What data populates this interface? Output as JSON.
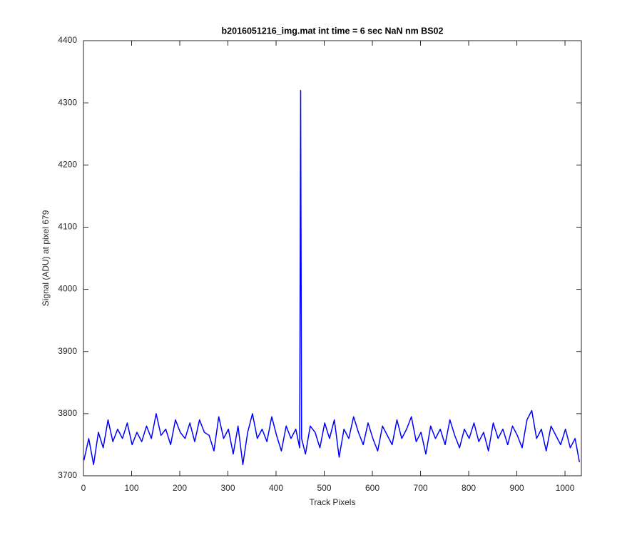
{
  "chart_data": {
    "type": "line",
    "title": "b2016051216_img.mat int time = 6 sec  NaN nm BS02",
    "xlabel": "Track Pixels",
    "ylabel": "Signal (ADU) at pixel 679",
    "xlim": [
      0,
      1034
    ],
    "ylim": [
      3700,
      4400
    ],
    "xticks": [
      0,
      100,
      200,
      300,
      400,
      500,
      600,
      700,
      800,
      900,
      1000
    ],
    "yticks": [
      3700,
      3800,
      3900,
      4000,
      4100,
      4200,
      4300,
      4400
    ],
    "grid": false,
    "series": [
      {
        "color": "#0000ff",
        "x": [
          1,
          11,
          21,
          31,
          41,
          51,
          61,
          71,
          81,
          91,
          101,
          111,
          121,
          131,
          141,
          151,
          161,
          171,
          181,
          191,
          201,
          211,
          221,
          231,
          241,
          251,
          261,
          271,
          281,
          291,
          301,
          311,
          321,
          331,
          341,
          351,
          361,
          371,
          381,
          391,
          401,
          411,
          421,
          431,
          441,
          449,
          451,
          453,
          461,
          471,
          481,
          491,
          501,
          511,
          521,
          531,
          541,
          551,
          561,
          571,
          581,
          591,
          601,
          611,
          621,
          631,
          641,
          651,
          661,
          671,
          681,
          691,
          701,
          711,
          721,
          731,
          741,
          751,
          761,
          771,
          781,
          791,
          801,
          811,
          821,
          831,
          841,
          851,
          861,
          871,
          881,
          891,
          901,
          911,
          921,
          931,
          941,
          951,
          961,
          971,
          981,
          991,
          1001,
          1011,
          1021,
          1030
        ],
        "values": [
          3725,
          3760,
          3718,
          3770,
          3745,
          3790,
          3755,
          3775,
          3760,
          3785,
          3750,
          3770,
          3755,
          3780,
          3760,
          3800,
          3765,
          3775,
          3750,
          3790,
          3770,
          3760,
          3785,
          3755,
          3790,
          3770,
          3765,
          3740,
          3795,
          3760,
          3775,
          3735,
          3780,
          3718,
          3770,
          3800,
          3760,
          3775,
          3755,
          3795,
          3765,
          3740,
          3780,
          3760,
          3775,
          3745,
          4320,
          3760,
          3735,
          3780,
          3770,
          3745,
          3785,
          3760,
          3790,
          3730,
          3775,
          3760,
          3795,
          3770,
          3750,
          3785,
          3760,
          3740,
          3780,
          3765,
          3750,
          3790,
          3760,
          3775,
          3795,
          3755,
          3770,
          3735,
          3780,
          3760,
          3775,
          3750,
          3790,
          3765,
          3745,
          3775,
          3760,
          3785,
          3755,
          3770,
          3740,
          3785,
          3760,
          3775,
          3750,
          3780,
          3765,
          3745,
          3790,
          3805,
          3760,
          3775,
          3740,
          3780,
          3765,
          3750,
          3775,
          3745,
          3760,
          3722
        ]
      }
    ]
  }
}
